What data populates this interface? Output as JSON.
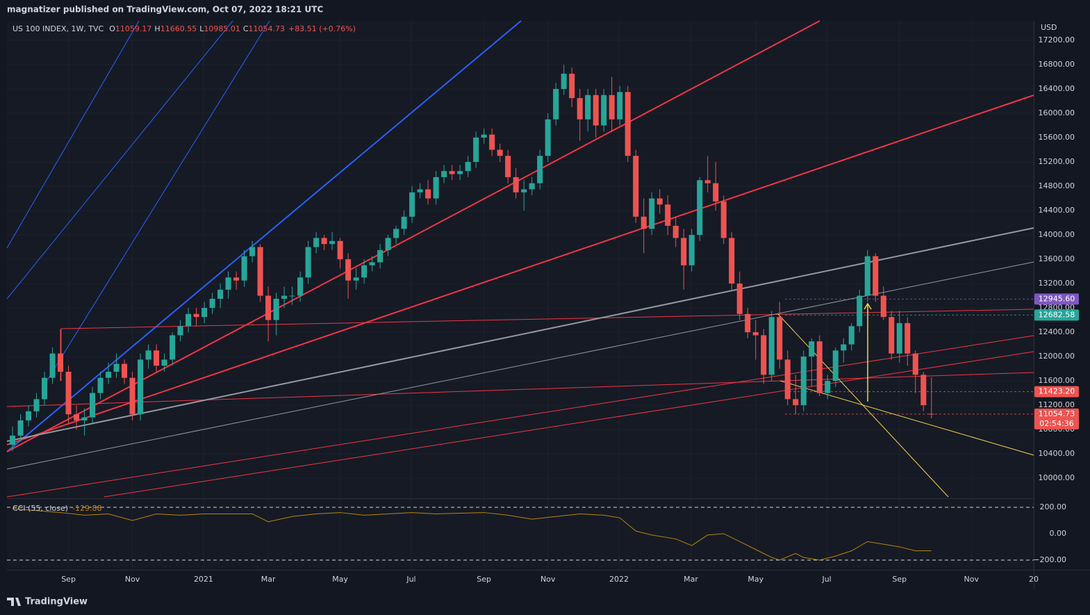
{
  "header": {
    "byline": "magnatizer published on TradingView.com, Oct 07, 2022 18:21 UTC"
  },
  "footer": {
    "brand": "TradingView"
  },
  "chart_data": {
    "type": "candlestick",
    "symbol": "US 100 INDEX, 1W, TVC",
    "ohlc_header": [
      {
        "key": "O",
        "value": "11059.17"
      },
      {
        "key": "H",
        "value": "11660.55"
      },
      {
        "key": "L",
        "value": "10985.01"
      },
      {
        "key": "C",
        "value": "11054.73"
      }
    ],
    "change": "+83.51 (+0.76%)",
    "currency": "USD",
    "up_color": "#26a69a",
    "down_color": "#ef5350",
    "xlim": [
      -0.7,
      127.8
    ],
    "xticks": [
      {
        "value": 7,
        "label": "Sep"
      },
      {
        "value": 15,
        "label": "Nov"
      },
      {
        "value": 23.9,
        "label": "2021"
      },
      {
        "value": 32,
        "label": "Mar"
      },
      {
        "value": 41,
        "label": "May"
      },
      {
        "value": 49.9,
        "label": "Jul"
      },
      {
        "value": 59,
        "label": "Sep"
      },
      {
        "value": 67,
        "label": "Nov"
      },
      {
        "value": 75.9,
        "label": "2022"
      },
      {
        "value": 84.9,
        "label": "Mar"
      },
      {
        "value": 93,
        "label": "May"
      },
      {
        "value": 101.9,
        "label": "Jul"
      },
      {
        "value": 111,
        "label": "Sep"
      },
      {
        "value": 120,
        "label": "Nov"
      },
      {
        "value": 127.8,
        "label": "20"
      }
    ],
    "ylim": [
      9670,
      17520
    ],
    "yticks": [
      {
        "value": 10000,
        "label": "10000.00"
      },
      {
        "value": 10400,
        "label": "10400.00"
      },
      {
        "value": 10800,
        "label": "10800.00"
      },
      {
        "value": 11200,
        "label": "11200.00"
      },
      {
        "value": 11600,
        "label": "11600.00"
      },
      {
        "value": 12000,
        "label": "12000.00"
      },
      {
        "value": 12400,
        "label": "12400.00"
      },
      {
        "value": 12800,
        "label": "12800.00"
      },
      {
        "value": 13200,
        "label": "13200.00"
      },
      {
        "value": 13600,
        "label": "13600.00"
      },
      {
        "value": 14000,
        "label": "14000.00"
      },
      {
        "value": 14400,
        "label": "14400.00"
      },
      {
        "value": 14800,
        "label": "14800.00"
      },
      {
        "value": 15200,
        "label": "15200.00"
      },
      {
        "value": 15600,
        "label": "15600.00"
      },
      {
        "value": 16000,
        "label": "16000.00"
      },
      {
        "value": 16400,
        "label": "16400.00"
      },
      {
        "value": 16800,
        "label": "16800.00"
      },
      {
        "value": 17200,
        "label": "17200.00"
      }
    ],
    "grid": true,
    "ohlc": [
      [
        10550,
        10850,
        10450,
        10700
      ],
      [
        10700,
        11050,
        10600,
        10950
      ],
      [
        10950,
        11200,
        10850,
        11100
      ],
      [
        11100,
        11400,
        11000,
        11300
      ],
      [
        11300,
        11750,
        11200,
        11650
      ],
      [
        11650,
        12150,
        11550,
        12050
      ],
      [
        12050,
        12450,
        11600,
        11750
      ],
      [
        11750,
        11850,
        10900,
        11050
      ],
      [
        11050,
        11200,
        10800,
        10950
      ],
      [
        10950,
        11150,
        10700,
        11000
      ],
      [
        11000,
        11500,
        10900,
        11400
      ],
      [
        11400,
        11750,
        11300,
        11650
      ],
      [
        11650,
        11900,
        11550,
        11750
      ],
      [
        11750,
        12050,
        11650,
        11880
      ],
      [
        11880,
        11950,
        11550,
        11650
      ],
      [
        11650,
        11750,
        10950,
        11050
      ],
      [
        11050,
        12050,
        10950,
        11950
      ],
      [
        11950,
        12200,
        11800,
        12100
      ],
      [
        12100,
        12200,
        11750,
        11850
      ],
      [
        11850,
        12050,
        11750,
        11950
      ],
      [
        11950,
        12400,
        11850,
        12350
      ],
      [
        12350,
        12600,
        12250,
        12500
      ],
      [
        12500,
        12800,
        12400,
        12700
      ],
      [
        12700,
        12800,
        12500,
        12650
      ],
      [
        12650,
        12900,
        12550,
        12800
      ],
      [
        12800,
        13050,
        12700,
        12950
      ],
      [
        12950,
        13200,
        12800,
        13100
      ],
      [
        13100,
        13400,
        12950,
        13300
      ],
      [
        13300,
        13400,
        13100,
        13250
      ],
      [
        13250,
        13750,
        13150,
        13650
      ],
      [
        13650,
        13900,
        13550,
        13800
      ],
      [
        13800,
        13850,
        12900,
        13000
      ],
      [
        13000,
        13150,
        12250,
        12600
      ],
      [
        12600,
        13050,
        12350,
        12950
      ],
      [
        12950,
        13150,
        12800,
        13000
      ],
      [
        13000,
        13150,
        12850,
        13000
      ],
      [
        13000,
        13400,
        12900,
        13300
      ],
      [
        13300,
        13900,
        13200,
        13800
      ],
      [
        13800,
        14050,
        13700,
        13950
      ],
      [
        13950,
        14000,
        13750,
        13850
      ],
      [
        13850,
        14050,
        13750,
        13900
      ],
      [
        13900,
        13950,
        13450,
        13600
      ],
      [
        13600,
        13700,
        12950,
        13250
      ],
      [
        13250,
        13450,
        13100,
        13300
      ],
      [
        13300,
        13600,
        13200,
        13500
      ],
      [
        13500,
        13650,
        13400,
        13550
      ],
      [
        13550,
        13850,
        13450,
        13750
      ],
      [
        13750,
        14000,
        13650,
        13950
      ],
      [
        13950,
        14150,
        13850,
        14100
      ],
      [
        14100,
        14400,
        14000,
        14300
      ],
      [
        14300,
        14800,
        14200,
        14700
      ],
      [
        14700,
        14850,
        14600,
        14750
      ],
      [
        14750,
        14900,
        14500,
        14600
      ],
      [
        14600,
        15050,
        14500,
        14950
      ],
      [
        14950,
        15150,
        14850,
        15050
      ],
      [
        15050,
        15150,
        14900,
        15000
      ],
      [
        15000,
        15150,
        14900,
        15050
      ],
      [
        15050,
        15300,
        14950,
        15200
      ],
      [
        15200,
        15700,
        15100,
        15600
      ],
      [
        15600,
        15750,
        15500,
        15650
      ],
      [
        15650,
        15750,
        15300,
        15400
      ],
      [
        15400,
        15500,
        15200,
        15300
      ],
      [
        15300,
        15400,
        14850,
        14950
      ],
      [
        14950,
        15100,
        14600,
        14700
      ],
      [
        14700,
        14900,
        14400,
        14750
      ],
      [
        14750,
        14950,
        14650,
        14850
      ],
      [
        14850,
        15400,
        14750,
        15300
      ],
      [
        15300,
        16000,
        15200,
        15900
      ],
      [
        15900,
        16500,
        15800,
        16400
      ],
      [
        16400,
        16800,
        16300,
        16650
      ],
      [
        16650,
        16750,
        16100,
        16250
      ],
      [
        16250,
        16400,
        15550,
        15900
      ],
      [
        15900,
        16400,
        15700,
        16300
      ],
      [
        16300,
        16400,
        15600,
        15800
      ],
      [
        15800,
        16400,
        15700,
        16300
      ],
      [
        16300,
        16600,
        15700,
        15900
      ],
      [
        15900,
        16450,
        15800,
        16350
      ],
      [
        16350,
        16450,
        15200,
        15300
      ],
      [
        15300,
        15400,
        14200,
        14300
      ],
      [
        14300,
        14600,
        13700,
        14100
      ],
      [
        14100,
        14700,
        14000,
        14600
      ],
      [
        14600,
        14750,
        14350,
        14500
      ],
      [
        14500,
        14650,
        14000,
        14150
      ],
      [
        14150,
        14300,
        13800,
        13950
      ],
      [
        13950,
        14100,
        13100,
        13500
      ],
      [
        13500,
        14100,
        13400,
        14000
      ],
      [
        14000,
        14950,
        13900,
        14900
      ],
      [
        14900,
        15300,
        14700,
        14850
      ],
      [
        14850,
        15200,
        14400,
        14550
      ],
      [
        14550,
        14650,
        13850,
        13950
      ],
      [
        13950,
        14050,
        13100,
        13200
      ],
      [
        13200,
        13400,
        12600,
        12700
      ],
      [
        12700,
        12800,
        12300,
        12400
      ],
      [
        12400,
        12600,
        11950,
        12350
      ],
      [
        12350,
        12450,
        11550,
        11700
      ],
      [
        11700,
        12750,
        11600,
        12650
      ],
      [
        12650,
        12900,
        11800,
        11950
      ],
      [
        11950,
        12100,
        11200,
        11300
      ],
      [
        11300,
        11700,
        11050,
        11200
      ],
      [
        11200,
        12100,
        11100,
        12000
      ],
      [
        12000,
        12300,
        11500,
        12250
      ],
      [
        12250,
        12350,
        11350,
        11400
      ],
      [
        11400,
        11700,
        11300,
        11600
      ],
      [
        11600,
        12150,
        11500,
        12100
      ],
      [
        12100,
        12300,
        11900,
        12200
      ],
      [
        12200,
        12550,
        12100,
        12500
      ],
      [
        12500,
        13100,
        12400,
        13000
      ],
      [
        13000,
        13750,
        12900,
        13650
      ],
      [
        13650,
        13700,
        12900,
        13000
      ],
      [
        13000,
        13150,
        12600,
        12650
      ],
      [
        12650,
        12750,
        11950,
        12050
      ],
      [
        12050,
        12750,
        11900,
        12550
      ],
      [
        12550,
        12650,
        11850,
        12050
      ],
      [
        12050,
        12100,
        11400,
        11700
      ],
      [
        11700,
        11750,
        11100,
        11200
      ],
      [
        11059.17,
        11660.55,
        10985.01,
        11054.73
      ]
    ],
    "price_labels": [
      {
        "value": 12945.6,
        "label": "12945.60",
        "color": "#7e57c2"
      },
      {
        "value": 12682.58,
        "label": "12682.58",
        "color": "#26a69a"
      },
      {
        "value": 11423.2,
        "label": "11423.20",
        "color": "#ef5350"
      },
      {
        "value": 11054.73,
        "label": "11054.73",
        "color": "#ef5350",
        "countdown": "02:54:36"
      }
    ],
    "cci": {
      "name": "CCI (55, close)",
      "last": "-129.88",
      "color": "#b8860b",
      "ylim": [
        -274,
        263
      ],
      "yticks": [
        {
          "value": 200,
          "label": "200.00"
        },
        {
          "value": 0,
          "label": "0.00"
        },
        {
          "value": -200,
          "label": "−200.00"
        }
      ],
      "x": [
        0,
        3,
        6,
        9,
        12,
        15,
        18,
        21,
        24,
        27,
        30,
        32,
        35,
        38,
        41,
        44,
        47,
        50,
        53,
        56,
        59,
        62,
        65,
        68,
        71,
        74,
        76,
        78,
        80,
        83,
        85,
        87,
        89,
        91,
        93,
        95,
        96,
        98,
        99,
        101,
        103,
        105,
        107,
        109,
        111,
        113,
        115
      ],
      "values": [
        190,
        175,
        160,
        140,
        150,
        100,
        150,
        140,
        150,
        150,
        150,
        90,
        130,
        150,
        160,
        140,
        150,
        160,
        150,
        155,
        160,
        140,
        110,
        130,
        150,
        140,
        120,
        20,
        -10,
        -40,
        -90,
        -10,
        0,
        -60,
        -120,
        -180,
        -200,
        -150,
        -180,
        -200,
        -170,
        -130,
        -60,
        -80,
        -100,
        -130,
        -129.88
      ]
    }
  }
}
